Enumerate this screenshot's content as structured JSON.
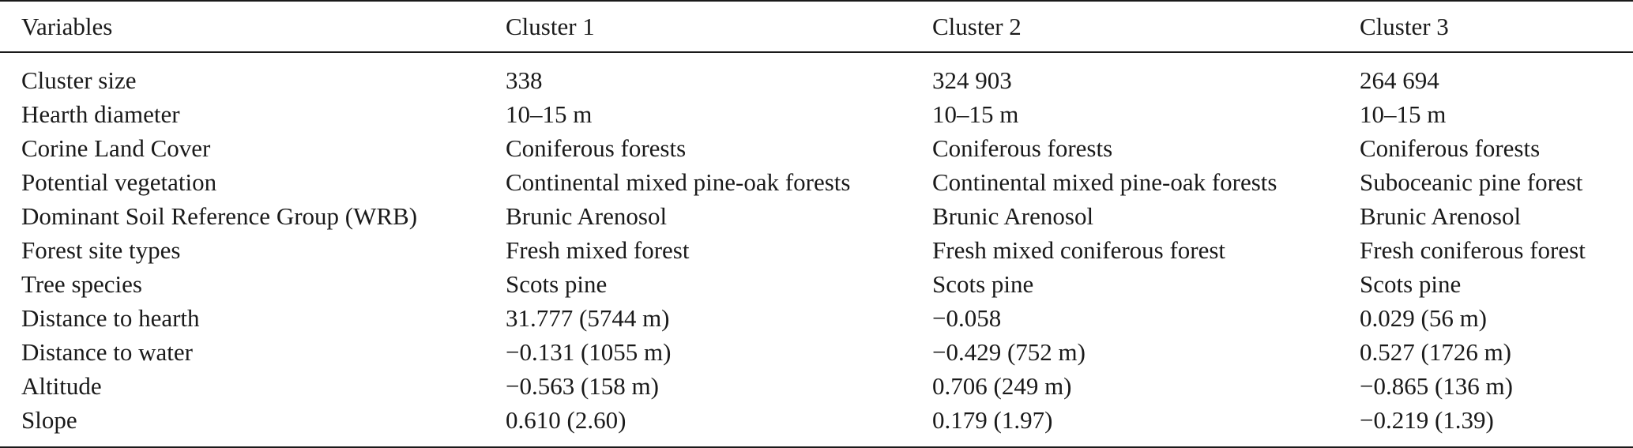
{
  "table": {
    "headers": [
      "Variables",
      "Cluster 1",
      "Cluster 2",
      "Cluster 3"
    ],
    "rows": [
      [
        "Cluster size",
        "338",
        "324 903",
        "264 694"
      ],
      [
        "Hearth diameter",
        "10–15 m",
        "10–15 m",
        "10–15 m"
      ],
      [
        "Corine Land Cover",
        "Coniferous forests",
        "Coniferous forests",
        "Coniferous forests"
      ],
      [
        "Potential vegetation",
        "Continental mixed pine-oak forests",
        "Continental mixed pine-oak forests",
        "Suboceanic pine forest"
      ],
      [
        "Dominant Soil Reference Group (WRB)",
        "Brunic Arenosol",
        "Brunic Arenosol",
        "Brunic Arenosol"
      ],
      [
        "Forest site types",
        "Fresh mixed forest",
        "Fresh mixed coniferous forest",
        "Fresh coniferous forest"
      ],
      [
        "Tree species",
        "Scots pine",
        "Scots pine",
        "Scots pine"
      ],
      [
        "Distance to hearth",
        "31.777 (5744 m)",
        "−0.058",
        "0.029 (56 m)"
      ],
      [
        "Distance to water",
        "−0.131 (1055 m)",
        "−0.429 (752 m)",
        "0.527 (1726 m)"
      ],
      [
        "Altitude",
        "−0.563 (158 m)",
        "0.706 (249 m)",
        "−0.865 (136 m)"
      ],
      [
        "Slope",
        "0.610 (2.60)",
        "0.179 (1.97)",
        "−0.219 (1.39)"
      ]
    ]
  }
}
